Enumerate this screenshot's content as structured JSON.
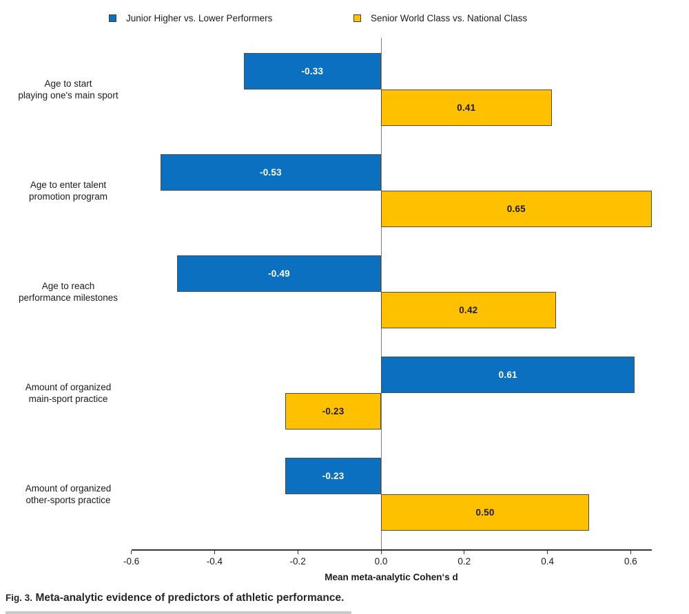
{
  "figure": {
    "caption_label": "Fig. 3.",
    "caption_text": "Meta-analytic evidence of predictors of athletic performance."
  },
  "chart_data": {
    "type": "bar",
    "orientation": "horizontal",
    "title": "",
    "xlabel": "Mean meta-analytic Cohen‘s d",
    "ylabel": "",
    "xlim": [
      -0.6,
      0.65
    ],
    "xticks": [
      -0.6,
      -0.4,
      -0.2,
      0.0,
      0.2,
      0.4,
      0.6
    ],
    "grid": false,
    "legend_position": "top",
    "categories": [
      "Age to start\nplaying one's main sport",
      "Age to enter talent\npromotion program",
      "Age to reach\nperformance milestones",
      "Amount of organized\nmain-sport practice",
      "Amount of organized\nother-sports practice"
    ],
    "series": [
      {
        "name": "Junior Higher vs. Lower Performers",
        "color": "#0B70C0",
        "label_color": "#ffffff",
        "values": [
          -0.33,
          -0.53,
          -0.49,
          0.61,
          -0.23
        ]
      },
      {
        "name": "Senior World Class vs. National Class",
        "color": "#FFC000",
        "label_color": "#1a1a1a",
        "values": [
          0.41,
          0.65,
          0.42,
          -0.23,
          0.5
        ]
      }
    ]
  }
}
